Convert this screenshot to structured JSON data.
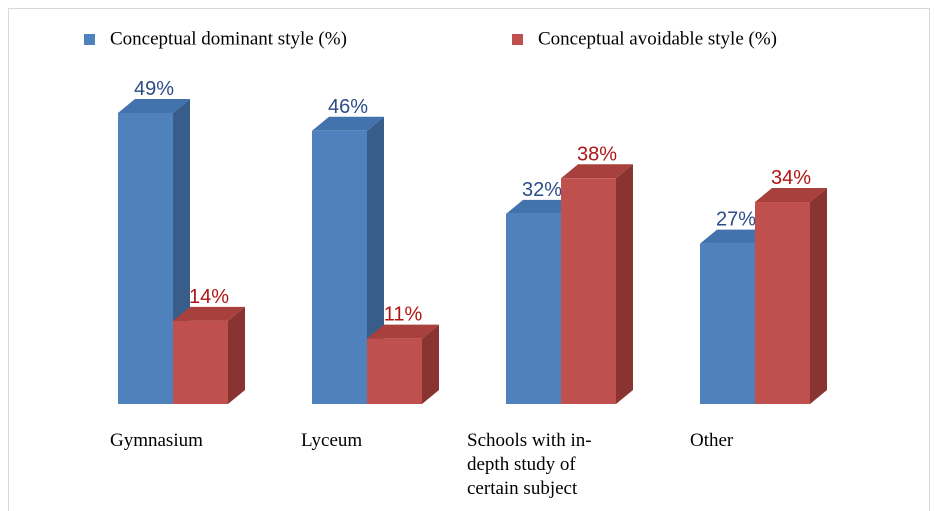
{
  "chart_data": {
    "type": "bar3d",
    "categories": [
      "Gymnasium",
      "Lyceum",
      "Schools with in-depth study of certain subject",
      "Other"
    ],
    "series": [
      {
        "name": "Conceptual dominant style (%)",
        "color": "#4f81bd",
        "side_color": "#385d8a",
        "top_color": "#4373ac",
        "label_color": "#2c4c86",
        "values": [
          49,
          46,
          32,
          27
        ],
        "value_labels": [
          "49%",
          "46%",
          "32%",
          "27%"
        ]
      },
      {
        "name": "Conceptual avoidable style (%)",
        "color": "#c0504d",
        "side_color": "#8a3432",
        "top_color": "#a8403d",
        "label_color": "#b01515",
        "values": [
          14,
          11,
          38,
          34
        ],
        "value_labels": [
          "14%",
          "11%",
          "38%",
          "34%"
        ]
      }
    ]
  }
}
